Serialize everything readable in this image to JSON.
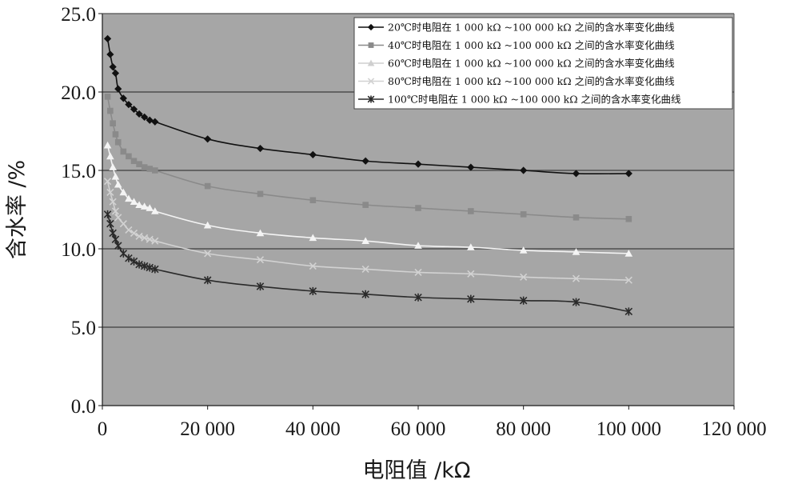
{
  "chart_data": {
    "type": "line",
    "xlabel": "电阻值 /kΩ",
    "ylabel": "含水率 /%",
    "xlim": [
      0,
      120000
    ],
    "ylim": [
      0,
      25
    ],
    "x_ticks": [
      0,
      20000,
      40000,
      60000,
      80000,
      100000,
      120000
    ],
    "x_tick_labels": [
      "0",
      "20 000",
      "40 000",
      "60 000",
      "80 000",
      "100 000",
      "120 000"
    ],
    "y_ticks": [
      0,
      5,
      10,
      15,
      20,
      25
    ],
    "y_tick_labels": [
      "0.0",
      "5.0",
      "10.0",
      "15.0",
      "20.0",
      "25.0"
    ],
    "grid": "horizontal",
    "legend_position": "top-right",
    "x": [
      1000,
      1500,
      2000,
      2500,
      3000,
      4000,
      5000,
      6000,
      7000,
      8000,
      9000,
      10000,
      20000,
      30000,
      40000,
      50000,
      60000,
      70000,
      80000,
      90000,
      100000
    ],
    "series": [
      {
        "name": "20℃时电阻在 1 000 kΩ ~100 000 kΩ 之间的含水率变化曲线",
        "marker": "diamond",
        "color": "#111111",
        "values": [
          23.4,
          22.4,
          21.6,
          21.2,
          20.2,
          19.6,
          19.2,
          18.9,
          18.6,
          18.4,
          18.2,
          18.1,
          17.0,
          16.4,
          16.0,
          15.6,
          15.4,
          15.2,
          15.0,
          14.8,
          14.8
        ]
      },
      {
        "name": "40℃时电阻在 1 000 kΩ ~100 000 kΩ 之间的含水率变化曲线",
        "marker": "square",
        "color": "#8a8a8a",
        "values": [
          19.7,
          18.8,
          18.0,
          17.3,
          16.8,
          16.2,
          15.9,
          15.6,
          15.4,
          15.2,
          15.1,
          15.0,
          14.0,
          13.5,
          13.1,
          12.8,
          12.6,
          12.4,
          12.2,
          12.0,
          11.9
        ]
      },
      {
        "name": "60℃时电阻在 1 000 kΩ ~100 000 kΩ 之间的含水率变化曲线",
        "marker": "triangle",
        "color": "#f4f4f4",
        "values": [
          16.6,
          15.9,
          15.2,
          14.6,
          14.1,
          13.6,
          13.2,
          13.0,
          12.8,
          12.7,
          12.6,
          12.4,
          11.5,
          11.0,
          10.7,
          10.5,
          10.2,
          10.1,
          9.9,
          9.8,
          9.7
        ]
      },
      {
        "name": "80℃时电阻在 1 000 kΩ ~100 000 kΩ 之间的含水率变化曲线",
        "marker": "x",
        "color": "#d2d2d2",
        "values": [
          14.3,
          13.6,
          13.0,
          12.4,
          12.0,
          11.6,
          11.2,
          11.0,
          10.8,
          10.7,
          10.6,
          10.5,
          9.7,
          9.3,
          8.9,
          8.7,
          8.5,
          8.4,
          8.2,
          8.1,
          8.0
        ]
      },
      {
        "name": "100℃时电阻在 1 000 kΩ ~100 000 kΩ 之间的含水率变化曲线",
        "marker": "star",
        "color": "#2a2a2a",
        "values": [
          12.2,
          11.6,
          11.0,
          10.6,
          10.2,
          9.7,
          9.4,
          9.2,
          9.0,
          8.9,
          8.8,
          8.7,
          8.0,
          7.6,
          7.3,
          7.1,
          6.9,
          6.8,
          6.7,
          6.6,
          6.0
        ]
      }
    ]
  },
  "colors": {
    "plot_background": "#a6a6a6",
    "gridline": "#3c3c3c",
    "legend_background": "#ffffff"
  }
}
